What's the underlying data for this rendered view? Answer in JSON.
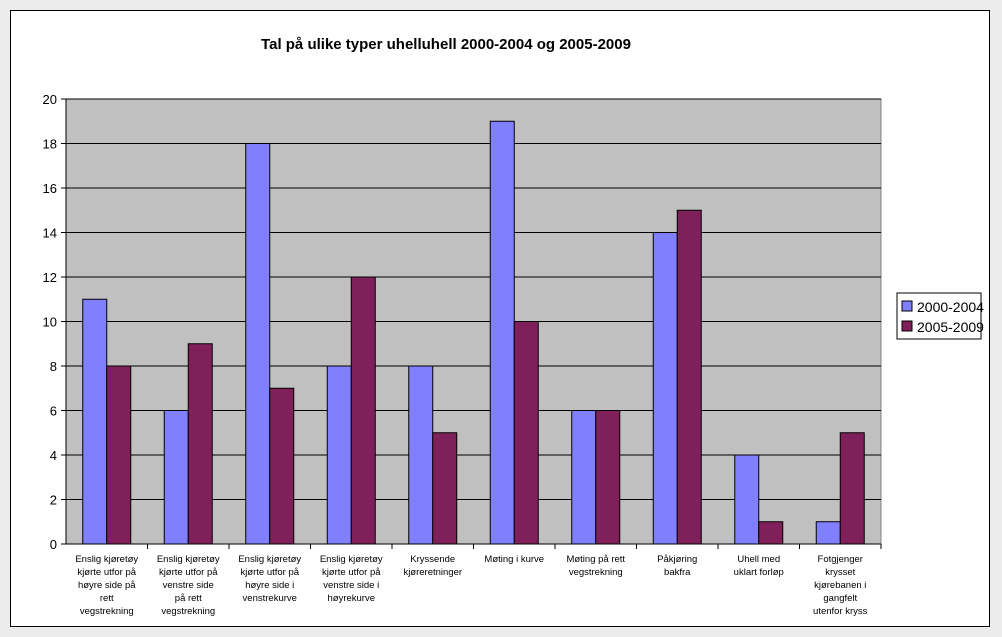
{
  "chart_data": {
    "type": "bar",
    "title": "Tal på ulike typer uhelluhell 2000-2004 og 2005-2009",
    "xlabel": "",
    "ylabel": "",
    "ylim": [
      0,
      20
    ],
    "yticks": [
      0,
      2,
      4,
      6,
      8,
      10,
      12,
      14,
      16,
      18,
      20
    ],
    "grid": true,
    "legend": "right",
    "categories": [
      [
        "Enslig kjøretøy",
        "kjørte utfor på",
        "høyre side på",
        "rett",
        "vegstrekning"
      ],
      [
        "Enslig kjøretøy",
        "kjørte utfor på",
        "venstre side",
        "på rett",
        "vegstrekning"
      ],
      [
        "Enslig kjøretøy",
        "kjørte utfor på",
        "høyre side i",
        "venstrekurve"
      ],
      [
        "Enslig kjøretøy",
        "kjørte utfor på",
        "venstre side i",
        "høyrekurve"
      ],
      [
        "Kryssende",
        "kjøreretninger"
      ],
      [
        "Møting i kurve"
      ],
      [
        "Møting på rett",
        "vegstrekning"
      ],
      [
        "Påkjøring",
        "bakfra"
      ],
      [
        "Uhell med",
        "uklart forløp"
      ],
      [
        "Fotgjenger",
        "krysset",
        "kjørebanen i",
        "gangfelt",
        "utenfor kryss"
      ]
    ],
    "series": [
      {
        "name": "2000-2004",
        "color": "#8080ff",
        "values": [
          11,
          6,
          18,
          8,
          8,
          19,
          6,
          14,
          4,
          1
        ]
      },
      {
        "name": "2005-2009",
        "color": "#80205a",
        "values": [
          8,
          9,
          7,
          12,
          5,
          10,
          6,
          15,
          1,
          5
        ]
      }
    ],
    "plot_background": "#c0c0c0"
  }
}
